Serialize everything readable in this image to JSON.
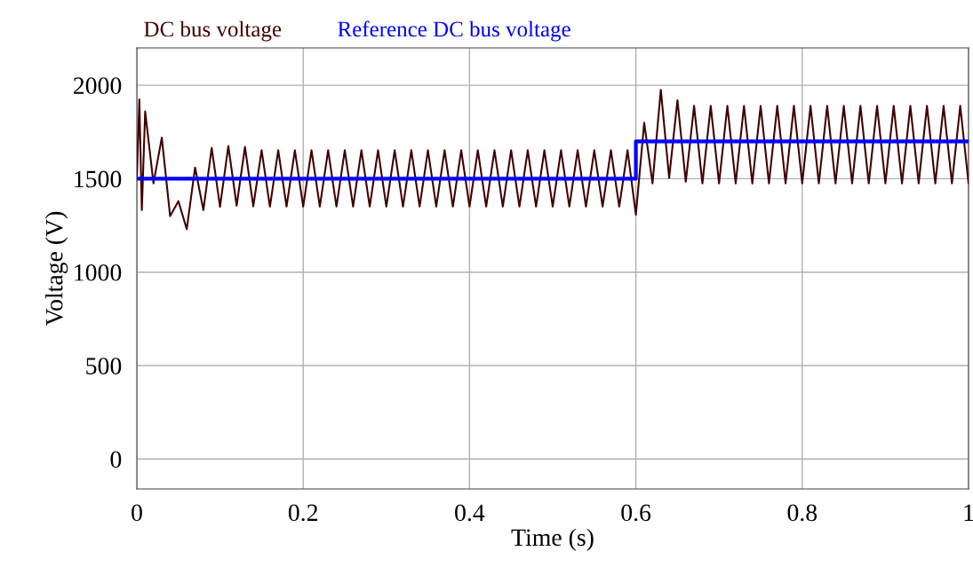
{
  "chart_data": {
    "type": "line",
    "xlabel": "Time (s)",
    "ylabel": "Voltage (V)",
    "xlim": [
      0,
      1
    ],
    "xticks": [
      0,
      0.2,
      0.4,
      0.6,
      0.8,
      1
    ],
    "ylim": [
      -160,
      2200
    ],
    "yticks": [
      0,
      500,
      1000,
      1500,
      2000
    ],
    "grid": true,
    "legend": "top left",
    "series": [
      {
        "name": "DC bus voltage",
        "color": "#400000",
        "x": [
          0,
          0.003,
          0.006,
          0.01,
          0.02,
          0.03,
          0.04,
          0.05,
          0.06,
          0.07,
          0.08,
          0.09,
          0.1,
          0.11,
          0.12,
          0.13,
          0.14,
          0.15,
          0.16,
          0.17,
          0.18,
          0.19,
          0.2,
          0.21,
          0.22,
          0.23,
          0.24,
          0.25,
          0.26,
          0.27,
          0.28,
          0.29,
          0.3,
          0.31,
          0.32,
          0.33,
          0.34,
          0.35,
          0.36,
          0.37,
          0.38,
          0.39,
          0.4,
          0.41,
          0.42,
          0.43,
          0.44,
          0.45,
          0.46,
          0.47,
          0.48,
          0.49,
          0.5,
          0.51,
          0.52,
          0.53,
          0.54,
          0.55,
          0.56,
          0.57,
          0.58,
          0.59,
          0.6,
          0.61,
          0.62,
          0.63,
          0.64,
          0.65,
          0.66,
          0.67,
          0.68,
          0.69,
          0.7,
          0.71,
          0.72,
          0.73,
          0.74,
          0.75,
          0.76,
          0.77,
          0.78,
          0.79,
          0.8,
          0.81,
          0.82,
          0.83,
          0.84,
          0.85,
          0.86,
          0.87,
          0.88,
          0.89,
          0.9,
          0.91,
          0.92,
          0.93,
          0.94,
          0.95,
          0.96,
          0.97,
          0.98,
          0.99,
          1
        ],
        "values": [
          1500,
          1924,
          1332,
          1860,
          1475,
          1720,
          1300,
          1380,
          1230,
          1560,
          1332,
          1665,
          1350,
          1675,
          1356,
          1670,
          1352,
          1652,
          1351,
          1652,
          1351,
          1652,
          1351,
          1652,
          1351,
          1652,
          1351,
          1652,
          1351,
          1652,
          1351,
          1652,
          1351,
          1652,
          1351,
          1652,
          1351,
          1652,
          1351,
          1652,
          1351,
          1652,
          1351,
          1652,
          1351,
          1652,
          1351,
          1652,
          1351,
          1652,
          1351,
          1652,
          1351,
          1652,
          1351,
          1652,
          1351,
          1652,
          1351,
          1652,
          1351,
          1652,
          1308,
          1800,
          1475,
          1976,
          1505,
          1920,
          1484,
          1890,
          1475,
          1890,
          1475,
          1890,
          1475,
          1890,
          1475,
          1890,
          1475,
          1890,
          1475,
          1890,
          1475,
          1890,
          1475,
          1890,
          1475,
          1890,
          1475,
          1890,
          1475,
          1890,
          1475,
          1890,
          1475,
          1890,
          1475,
          1890,
          1475,
          1890,
          1475,
          1890,
          1475
        ]
      },
      {
        "name": "Reference DC bus voltage",
        "color": "#0000ff",
        "type": "step",
        "x": [
          0,
          0.6,
          0.6,
          1
        ],
        "values": [
          1500,
          1500,
          1700,
          1700
        ]
      }
    ]
  }
}
